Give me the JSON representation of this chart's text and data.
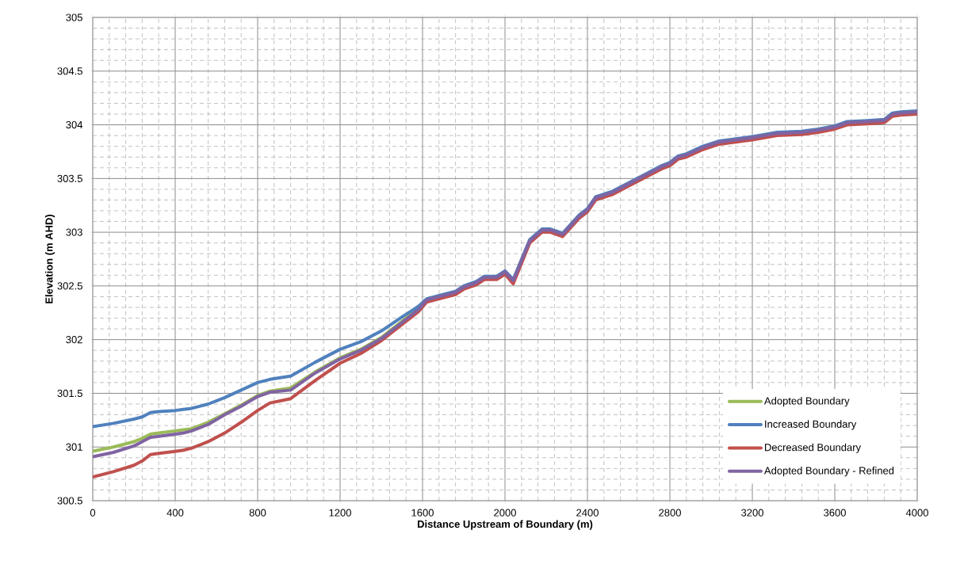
{
  "chart_data": {
    "type": "line",
    "xlabel": "Distance Upstream of Boundary (m)",
    "ylabel": "Elevation (m AHD)",
    "x": [
      0,
      100,
      200,
      240,
      280,
      320,
      400,
      440,
      480,
      560,
      640,
      720,
      800,
      860,
      960,
      1080,
      1200,
      1300,
      1400,
      1500,
      1580,
      1620,
      1700,
      1760,
      1800,
      1860,
      1900,
      1960,
      2000,
      2040,
      2120,
      2180,
      2220,
      2280,
      2360,
      2400,
      2440,
      2520,
      2600,
      2680,
      2760,
      2800,
      2840,
      2880,
      2960,
      3040,
      3120,
      3200,
      3320,
      3440,
      3520,
      3600,
      3660,
      3760,
      3840,
      3880,
      3920,
      4000
    ],
    "xlim": [
      0,
      4000
    ],
    "ylim": [
      300.5,
      305
    ],
    "xticks": [
      0,
      400,
      800,
      1200,
      1600,
      2000,
      2400,
      2800,
      3200,
      3600,
      4000
    ],
    "yticks": [
      300.5,
      301,
      301.5,
      302,
      302.5,
      303,
      303.5,
      304,
      304.5,
      305
    ],
    "grid": true,
    "legend": "bottom right",
    "series": [
      {
        "name": "Adopted Boundary",
        "color": "#9bbb59",
        "values": [
          300.96,
          301.0,
          301.05,
          301.08,
          301.12,
          301.13,
          301.15,
          301.16,
          301.17,
          301.23,
          301.31,
          301.39,
          301.48,
          301.52,
          301.55,
          301.7,
          301.83,
          301.91,
          302.02,
          302.17,
          302.29,
          null,
          null,
          null,
          null,
          null,
          null,
          null,
          null,
          null,
          null,
          null,
          null,
          null,
          null,
          null,
          null,
          null,
          null,
          null,
          null,
          null,
          null,
          null,
          null,
          null,
          null,
          null,
          null,
          null,
          null,
          null,
          null,
          null,
          null,
          null,
          null,
          null
        ]
      },
      {
        "name": "Increased Boundary",
        "color": "#4f81bd",
        "values": [
          301.19,
          301.22,
          301.26,
          301.28,
          301.32,
          301.33,
          301.34,
          301.35,
          301.36,
          301.4,
          301.46,
          301.53,
          301.6,
          301.63,
          301.66,
          301.79,
          301.91,
          301.98,
          302.08,
          302.21,
          302.31,
          302.38,
          302.42,
          302.45,
          302.5,
          302.54,
          302.59,
          302.59,
          302.64,
          302.56,
          302.93,
          303.03,
          303.03,
          302.99,
          303.16,
          303.22,
          303.33,
          303.38,
          303.46,
          303.54,
          303.62,
          303.65,
          303.71,
          303.73,
          303.8,
          303.85,
          303.87,
          303.89,
          303.93,
          303.94,
          303.96,
          303.99,
          304.03,
          304.04,
          304.05,
          304.11,
          304.12,
          304.13
        ]
      },
      {
        "name": "Decreased Boundary",
        "color": "#c0504d",
        "values": [
          300.72,
          300.77,
          300.83,
          300.87,
          300.93,
          300.94,
          300.96,
          300.97,
          300.99,
          301.05,
          301.13,
          301.23,
          301.34,
          301.41,
          301.45,
          301.62,
          301.78,
          301.87,
          301.99,
          302.14,
          302.26,
          302.35,
          302.39,
          302.42,
          302.47,
          302.51,
          302.56,
          302.56,
          302.61,
          302.52,
          302.9,
          303.0,
          303.0,
          302.96,
          303.13,
          303.19,
          303.3,
          303.35,
          303.43,
          303.51,
          303.59,
          303.62,
          303.68,
          303.7,
          303.77,
          303.82,
          303.84,
          303.86,
          303.9,
          303.91,
          303.93,
          303.96,
          304.0,
          304.01,
          304.02,
          304.08,
          304.09,
          304.1
        ]
      },
      {
        "name": "Adopted Boundary - Refined",
        "color": "#8064a2",
        "values": [
          300.91,
          300.95,
          301.01,
          301.05,
          301.09,
          301.1,
          301.12,
          301.13,
          301.15,
          301.21,
          301.3,
          301.38,
          301.47,
          301.51,
          301.53,
          301.69,
          301.82,
          301.9,
          302.01,
          302.16,
          302.28,
          302.37,
          302.41,
          302.44,
          302.49,
          302.53,
          302.58,
          302.58,
          302.63,
          302.55,
          302.92,
          303.02,
          303.02,
          302.98,
          303.15,
          303.21,
          303.32,
          303.37,
          303.45,
          303.53,
          303.61,
          303.64,
          303.7,
          303.72,
          303.79,
          303.84,
          303.86,
          303.88,
          303.92,
          303.93,
          303.95,
          303.98,
          304.02,
          304.03,
          304.04,
          304.1,
          304.11,
          304.12
        ]
      }
    ]
  }
}
